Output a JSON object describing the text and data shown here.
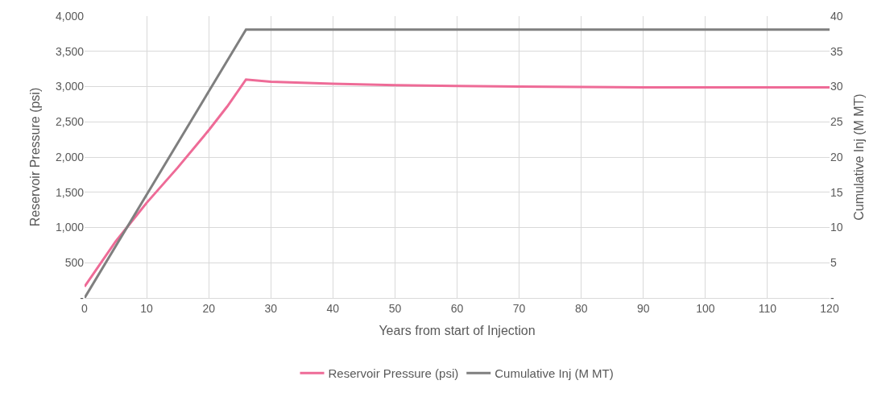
{
  "chart_data": {
    "type": "line",
    "xlabel": "Years from start of Injection",
    "ylabel": "Reservoir Pressure (psi)",
    "y2label": "Cumulative Inj (M MT)",
    "xlim": [
      0,
      120
    ],
    "xticks": [
      0,
      10,
      20,
      30,
      40,
      50,
      60,
      70,
      80,
      90,
      100,
      110,
      120
    ],
    "ylim": [
      0,
      4000
    ],
    "yticks": [
      {
        "value": 0,
        "label": "-"
      },
      {
        "value": 500,
        "label": "500"
      },
      {
        "value": 1000,
        "label": "1,000"
      },
      {
        "value": 1500,
        "label": "1,500"
      },
      {
        "value": 2000,
        "label": "2,000"
      },
      {
        "value": 2500,
        "label": "2,500"
      },
      {
        "value": 3000,
        "label": "3,000"
      },
      {
        "value": 3500,
        "label": "3,500"
      },
      {
        "value": 4000,
        "label": "4,000"
      }
    ],
    "y2lim": [
      0,
      40
    ],
    "y2ticks": [
      {
        "value": 0,
        "label": "-"
      },
      5,
      10,
      15,
      20,
      25,
      30,
      35,
      40
    ],
    "grid": true,
    "legend": "bottom",
    "line_style": "solid",
    "series": [
      {
        "name": "Reservoir Pressure (psi)",
        "color": "#ee6b97",
        "x": [
          0,
          5,
          10,
          15,
          20,
          23,
          26,
          30,
          40,
          50,
          60,
          70,
          90,
          120
        ],
        "values": [
          160,
          800,
          1350,
          1850,
          2380,
          2720,
          3100,
          3070,
          3040,
          3020,
          3010,
          3000,
          2990,
          2990
        ]
      },
      {
        "name": "Cumulative Inj (M MT)",
        "color": "#7f7f7f",
        "axis": "y2",
        "x": [
          0,
          26,
          120
        ],
        "values": [
          0,
          38.1,
          38.1
        ]
      }
    ]
  }
}
